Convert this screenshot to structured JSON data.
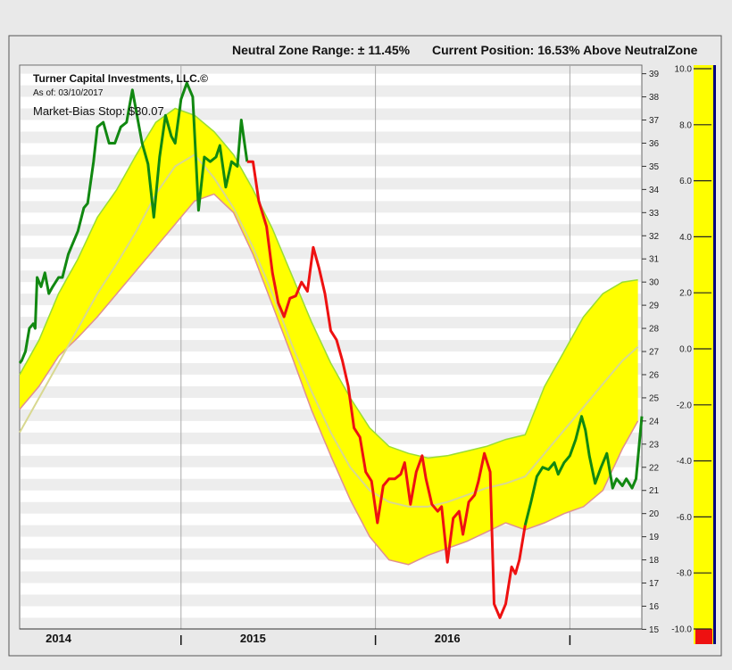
{
  "header": {
    "neutral_zone": "Neutral Zone Range: ± 11.45%",
    "current_position": "Current Position: 16.53% Above NeutralZone"
  },
  "chart_title": {
    "company": "Turner Capital Investments, LLC.©",
    "as_of": "As of: 03/10/2017",
    "stop": "Market-Bias Stop: $30.07"
  },
  "colors": {
    "background": "#e9e9e9",
    "plot_bg": "#ffffff",
    "stripe": "#ededed",
    "band_fill": "#ffff00",
    "band_upper_edge": "#99dd33",
    "band_lower_edge": "#e09090",
    "band_center": "#d8d890",
    "price_up": "#118811",
    "price_down": "#ee1111",
    "indicator_fill": "#ffff00",
    "indicator_line": "#000080",
    "indicator_marker": "#ee1111"
  },
  "chart_data": {
    "type": "line",
    "x_axis": {
      "year_labels": [
        "2014",
        "2015",
        "2016"
      ],
      "year_positions": [
        2014.2,
        2015.2,
        2016.2
      ],
      "year_dividers": [
        2014.83,
        2015.83,
        2016.83
      ],
      "range": [
        2014.0,
        2017.2
      ]
    },
    "y_axis": {
      "min": 15,
      "max": 39.5,
      "ticks": [
        15,
        16,
        17,
        18,
        19,
        20,
        21,
        22,
        23,
        24,
        25,
        26,
        27,
        28,
        29,
        30,
        31,
        32,
        33,
        34,
        35,
        36,
        37,
        38,
        39
      ]
    },
    "band": {
      "x": [
        2014.0,
        2014.1,
        2014.2,
        2014.3,
        2014.4,
        2014.5,
        2014.6,
        2014.7,
        2014.8,
        2014.9,
        2015.0,
        2015.1,
        2015.2,
        2015.3,
        2015.4,
        2015.5,
        2015.6,
        2015.7,
        2015.8,
        2015.9,
        2016.0,
        2016.1,
        2016.2,
        2016.3,
        2016.4,
        2016.5,
        2016.6,
        2016.7,
        2016.8,
        2016.9,
        2017.0,
        2017.1,
        2017.18
      ],
      "upper": [
        26.0,
        27.5,
        29.5,
        31.0,
        32.8,
        34.0,
        35.5,
        36.9,
        37.5,
        37.2,
        36.5,
        35.5,
        34.0,
        32.3,
        30.3,
        28.3,
        26.5,
        25.0,
        23.7,
        22.9,
        22.6,
        22.4,
        22.5,
        22.7,
        22.9,
        23.2,
        23.4,
        25.5,
        27.0,
        28.5,
        29.5,
        30.0,
        30.1
      ],
      "center": [
        23.5,
        25.0,
        26.5,
        28.0,
        29.5,
        30.8,
        32.2,
        33.8,
        35.0,
        35.5,
        34.5,
        33.2,
        31.5,
        29.5,
        27.3,
        25.3,
        23.5,
        22.0,
        21.0,
        20.5,
        20.3,
        20.3,
        20.5,
        20.8,
        21.1,
        21.3,
        21.6,
        22.6,
        23.6,
        24.6,
        25.6,
        26.6,
        27.2
      ],
      "lower": [
        24.5,
        25.5,
        26.8,
        27.6,
        28.5,
        29.5,
        30.5,
        31.5,
        32.5,
        33.5,
        33.8,
        33.0,
        31.2,
        29.0,
        26.8,
        24.5,
        22.5,
        20.6,
        19.0,
        18.0,
        17.8,
        18.2,
        18.5,
        18.8,
        19.2,
        19.6,
        19.3,
        19.6,
        20.0,
        20.3,
        21.0,
        22.8,
        24.0
      ]
    },
    "series": [
      {
        "color": "up",
        "points": [
          [
            2014.0,
            26.5
          ],
          [
            2014.01,
            26.6
          ],
          [
            2014.03,
            27.0
          ],
          [
            2014.05,
            28.0
          ],
          [
            2014.07,
            28.2
          ],
          [
            2014.08,
            28.0
          ],
          [
            2014.09,
            30.2
          ],
          [
            2014.11,
            29.8
          ],
          [
            2014.13,
            30.4
          ],
          [
            2014.15,
            29.5
          ],
          [
            2014.17,
            29.8
          ],
          [
            2014.2,
            30.2
          ],
          [
            2014.22,
            30.2
          ],
          [
            2014.25,
            31.2
          ],
          [
            2014.27,
            31.6
          ],
          [
            2014.3,
            32.2
          ],
          [
            2014.33,
            33.2
          ],
          [
            2014.35,
            33.4
          ],
          [
            2014.38,
            35.2
          ],
          [
            2014.4,
            36.7
          ],
          [
            2014.43,
            36.9
          ],
          [
            2014.46,
            36.0
          ],
          [
            2014.49,
            36.0
          ],
          [
            2014.52,
            36.7
          ],
          [
            2014.55,
            36.9
          ],
          [
            2014.58,
            38.3
          ],
          [
            2014.61,
            36.9
          ],
          [
            2014.63,
            36.0
          ],
          [
            2014.66,
            35.1
          ],
          [
            2014.69,
            32.8
          ],
          [
            2014.72,
            35.4
          ],
          [
            2014.75,
            37.2
          ],
          [
            2014.78,
            36.3
          ],
          [
            2014.8,
            36.0
          ],
          [
            2014.83,
            37.9
          ],
          [
            2014.86,
            38.6
          ],
          [
            2014.89,
            38.0
          ],
          [
            2014.92,
            33.1
          ],
          [
            2014.95,
            35.4
          ],
          [
            2014.98,
            35.2
          ],
          [
            2015.01,
            35.4
          ],
          [
            2015.03,
            35.9
          ],
          [
            2015.06,
            34.1
          ],
          [
            2015.09,
            35.2
          ],
          [
            2015.12,
            35.0
          ],
          [
            2015.14,
            37.0
          ],
          [
            2015.17,
            35.2
          ]
        ]
      },
      {
        "color": "down",
        "points": [
          [
            2015.17,
            35.2
          ],
          [
            2015.2,
            35.2
          ],
          [
            2015.23,
            33.5
          ],
          [
            2015.27,
            32.4
          ],
          [
            2015.3,
            30.4
          ],
          [
            2015.33,
            29.1
          ],
          [
            2015.36,
            28.5
          ],
          [
            2015.39,
            29.3
          ],
          [
            2015.42,
            29.4
          ],
          [
            2015.45,
            30.0
          ],
          [
            2015.48,
            29.6
          ],
          [
            2015.51,
            31.5
          ],
          [
            2015.54,
            30.6
          ],
          [
            2015.57,
            29.5
          ],
          [
            2015.6,
            27.9
          ],
          [
            2015.63,
            27.5
          ],
          [
            2015.66,
            26.6
          ],
          [
            2015.69,
            25.5
          ],
          [
            2015.72,
            23.7
          ],
          [
            2015.75,
            23.3
          ],
          [
            2015.78,
            21.8
          ],
          [
            2015.81,
            21.4
          ],
          [
            2015.84,
            19.6
          ],
          [
            2015.87,
            21.2
          ],
          [
            2015.9,
            21.5
          ],
          [
            2015.93,
            21.5
          ],
          [
            2015.96,
            21.7
          ],
          [
            2015.98,
            22.2
          ],
          [
            2016.01,
            20.4
          ],
          [
            2016.04,
            21.8
          ],
          [
            2016.07,
            22.5
          ],
          [
            2016.09,
            21.5
          ],
          [
            2016.12,
            20.4
          ],
          [
            2016.15,
            20.1
          ],
          [
            2016.17,
            20.3
          ],
          [
            2016.2,
            17.9
          ],
          [
            2016.23,
            19.8
          ],
          [
            2016.26,
            20.1
          ],
          [
            2016.28,
            19.1
          ],
          [
            2016.31,
            20.5
          ],
          [
            2016.34,
            20.8
          ],
          [
            2016.36,
            21.4
          ],
          [
            2016.39,
            22.6
          ],
          [
            2016.42,
            21.8
          ],
          [
            2016.44,
            16.1
          ],
          [
            2016.47,
            15.5
          ],
          [
            2016.5,
            16.1
          ],
          [
            2016.53,
            17.7
          ],
          [
            2016.55,
            17.4
          ],
          [
            2016.57,
            18.0
          ],
          [
            2016.6,
            19.5
          ]
        ]
      },
      {
        "color": "up",
        "points": [
          [
            2016.6,
            19.5
          ],
          [
            2016.63,
            20.5
          ],
          [
            2016.66,
            21.6
          ],
          [
            2016.69,
            22.0
          ],
          [
            2016.72,
            21.9
          ],
          [
            2016.75,
            22.2
          ],
          [
            2016.77,
            21.7
          ],
          [
            2016.8,
            22.2
          ],
          [
            2016.83,
            22.5
          ],
          [
            2016.86,
            23.2
          ],
          [
            2016.89,
            24.2
          ],
          [
            2016.91,
            23.6
          ],
          [
            2016.93,
            22.5
          ],
          [
            2016.96,
            21.3
          ],
          [
            2016.99,
            22.0
          ],
          [
            2017.02,
            22.6
          ],
          [
            2017.05,
            21.1
          ],
          [
            2017.07,
            21.5
          ],
          [
            2017.1,
            21.2
          ],
          [
            2017.12,
            21.5
          ],
          [
            2017.15,
            21.1
          ],
          [
            2017.17,
            21.5
          ],
          [
            2017.2,
            24.2
          ]
        ]
      }
    ],
    "indicator": {
      "ticks": [
        "10.0",
        "8.0",
        "6.0",
        "4.0",
        "2.0",
        "0.0",
        "-2.0",
        "-4.0",
        "-6.0",
        "-8.0",
        "-10.0"
      ],
      "range": [
        -10,
        10
      ]
    }
  }
}
